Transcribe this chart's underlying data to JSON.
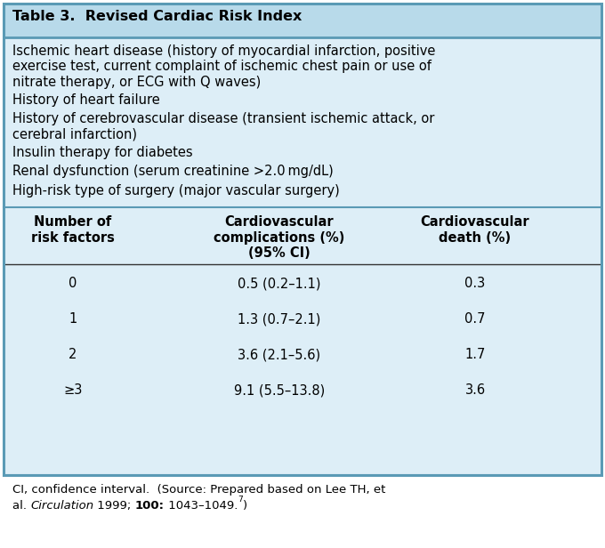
{
  "title": "Table 3.  Revised Cardiac Risk Index",
  "title_bg": "#b8daea",
  "table_bg": "#ddeef7",
  "outer_border_color": "#5a9ab5",
  "risk_factors": [
    "Ischemic heart disease (history of myocardial infarction, positive\nexercise test, current complaint of ischemic chest pain or use of\nnitrate therapy, or ECG with Q waves)",
    "History of heart failure",
    "History of cerebrovascular disease (transient ischemic attack, or\ncerebral infarction)",
    "Insulin therapy for diabetes",
    "Renal dysfunction (serum creatinine >2.0 mg/dL)",
    "High-risk type of surgery (major vascular surgery)"
  ],
  "col_headers": [
    "Number of\nrisk factors",
    "Cardiovascular\ncomplications (%)\n(95% CI)",
    "Cardiovascular\ndeath (%)"
  ],
  "rows": [
    [
      "0",
      "0.5 (0.2–1.1)",
      "0.3"
    ],
    [
      "1",
      "1.3 (0.7–2.1)",
      "0.7"
    ],
    [
      "2",
      "3.6 (2.1–5.6)",
      "1.7"
    ],
    [
      "≥3",
      "9.1 (5.5–13.8)",
      "3.6"
    ]
  ],
  "fig_width": 6.8,
  "fig_height": 6.16,
  "dpi": 100
}
